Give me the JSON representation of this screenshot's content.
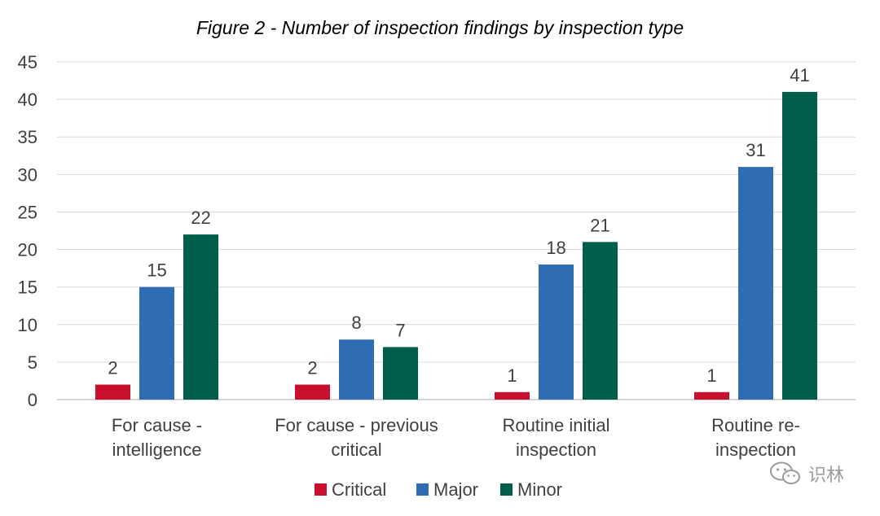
{
  "chart_data": {
    "type": "bar",
    "title": "Figure 2 - Number of inspection findings by inspection type",
    "xlabel": "",
    "ylabel": "",
    "categories": [
      [
        "For cause -",
        "intelligence"
      ],
      [
        "For cause - previous",
        "critical"
      ],
      [
        "Routine initial",
        "inspection"
      ],
      [
        "Routine re-",
        "inspection"
      ]
    ],
    "series": [
      {
        "name": "Critical",
        "color": "#c8102e",
        "values": [
          2,
          2,
          1,
          1
        ]
      },
      {
        "name": "Major",
        "color": "#2e6db4",
        "values": [
          15,
          8,
          18,
          31
        ]
      },
      {
        "name": "Minor",
        "color": "#005e4a",
        "values": [
          22,
          7,
          21,
          41
        ]
      }
    ],
    "ylim": [
      0,
      45
    ],
    "yticks": [
      0,
      5,
      10,
      15,
      20,
      25,
      30,
      35,
      40,
      45
    ],
    "grid": true,
    "legend": "bottom",
    "data_labels": true
  },
  "watermark": {
    "text": "识林",
    "icon": "wechat-icon"
  }
}
